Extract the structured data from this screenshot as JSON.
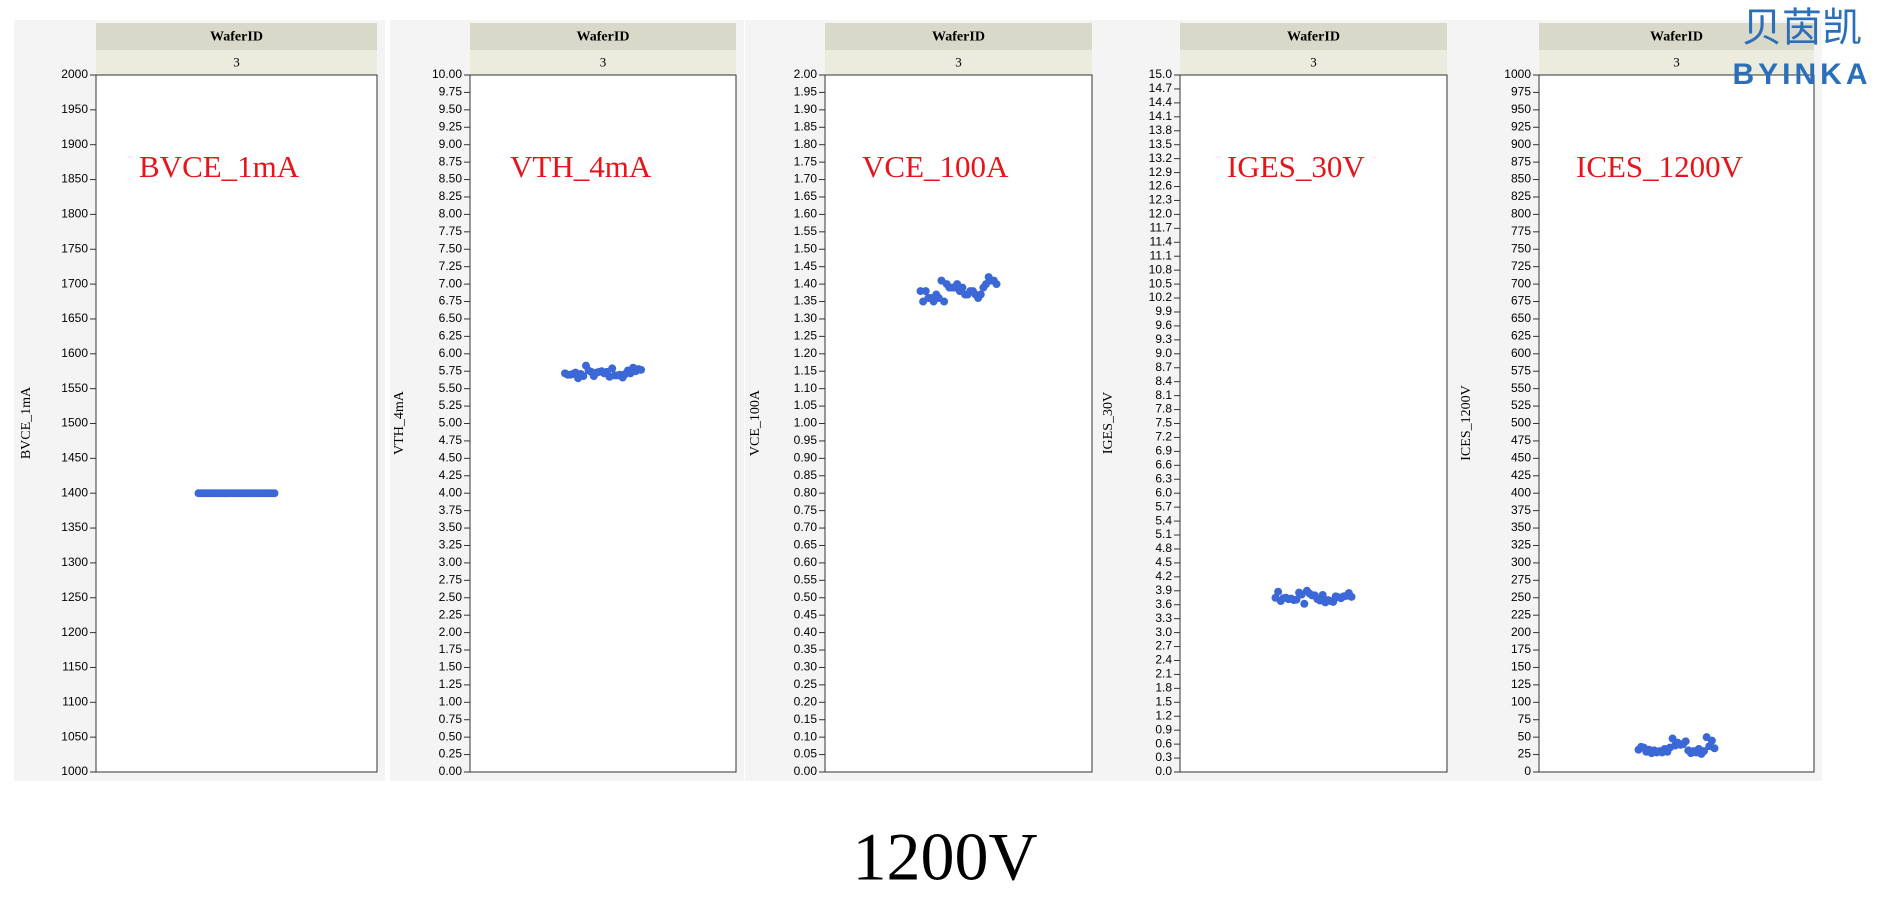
{
  "chart_data": [
    {
      "type": "scatter",
      "header": "WaferID",
      "categories": [
        "3"
      ],
      "y_label": "BVCE_1mA",
      "annotation": "BVCE_1mA",
      "color": "#3b68d6",
      "ylim": [
        1000,
        2000
      ],
      "yticks": [
        1000,
        1050,
        1100,
        1150,
        1200,
        1250,
        1300,
        1350,
        1400,
        1450,
        1500,
        1550,
        1600,
        1650,
        1700,
        1750,
        1800,
        1850,
        1900,
        1950,
        2000
      ],
      "values": [
        1400,
        1400,
        1400,
        1400,
        1400,
        1400,
        1400,
        1400,
        1400,
        1400,
        1400,
        1400,
        1400,
        1400,
        1400,
        1400,
        1400,
        1400,
        1400,
        1400,
        1400,
        1400,
        1400,
        1400,
        1400,
        1400,
        1400,
        1400,
        1400,
        1400
      ]
    },
    {
      "type": "scatter",
      "header": "WaferID",
      "categories": [
        "3"
      ],
      "y_label": "VTH_4mA",
      "annotation": "VTH_4mA",
      "color": "#3b68d6",
      "ylim": [
        0,
        10
      ],
      "yticks": [
        {
          "value": 0,
          "label": "0.00"
        },
        0.25,
        {
          "value": 0.5,
          "label": "0.50"
        },
        0.75,
        {
          "value": 1,
          "label": "1.00"
        },
        1.25,
        {
          "value": 1.5,
          "label": "1.50"
        },
        1.75,
        {
          "value": 2,
          "label": "2.00"
        },
        2.25,
        {
          "value": 2.5,
          "label": "2.50"
        },
        2.75,
        {
          "value": 3,
          "label": "3.00"
        },
        3.25,
        {
          "value": 3.5,
          "label": "3.50"
        },
        3.75,
        {
          "value": 4,
          "label": "4.00"
        },
        4.25,
        {
          "value": 4.5,
          "label": "4.50"
        },
        4.75,
        {
          "value": 5,
          "label": "5.00"
        },
        5.25,
        {
          "value": 5.5,
          "label": "5.50"
        },
        5.75,
        {
          "value": 6,
          "label": "6.00"
        },
        6.25,
        {
          "value": 6.5,
          "label": "6.50"
        },
        6.75,
        {
          "value": 7,
          "label": "7.00"
        },
        7.25,
        {
          "value": 7.5,
          "label": "7.50"
        },
        7.75,
        {
          "value": 8,
          "label": "8.00"
        },
        8.25,
        {
          "value": 8.5,
          "label": "8.50"
        },
        8.75,
        {
          "value": 9,
          "label": "9.00"
        },
        9.25,
        {
          "value": 9.5,
          "label": "9.50"
        },
        9.75,
        {
          "value": 10,
          "label": "10.00"
        }
      ],
      "values": [
        5.72,
        5.68,
        5.75,
        5.7,
        5.78,
        5.65,
        5.73,
        5.69,
        5.8,
        5.71,
        5.74,
        5.67,
        5.76,
        5.7,
        5.83,
        5.72,
        5.66,
        5.77,
        5.71,
        5.74,
        5.69,
        5.75,
        5.73,
        5.68,
        5.79,
        5.72,
        5.7,
        5.76,
        5.74,
        5.71
      ]
    },
    {
      "type": "scatter",
      "header": "WaferID",
      "categories": [
        "3"
      ],
      "y_label": "VCE_100A",
      "annotation": "VCE_100A",
      "color": "#3b68d6",
      "ylim": [
        0,
        2
      ],
      "yticks": [
        {
          "value": 0,
          "label": "0.00"
        },
        0.05,
        {
          "value": 0.1,
          "label": "0.10"
        },
        0.15,
        {
          "value": 0.2,
          "label": "0.20"
        },
        0.25,
        {
          "value": 0.3,
          "label": "0.30"
        },
        0.35,
        {
          "value": 0.4,
          "label": "0.40"
        },
        0.45,
        {
          "value": 0.5,
          "label": "0.50"
        },
        0.55,
        {
          "value": 0.6,
          "label": "0.60"
        },
        0.65,
        {
          "value": 0.7,
          "label": "0.70"
        },
        0.75,
        {
          "value": 0.8,
          "label": "0.80"
        },
        0.85,
        {
          "value": 0.9,
          "label": "0.90"
        },
        0.95,
        {
          "value": 1,
          "label": "1.00"
        },
        1.05,
        {
          "value": 1.1,
          "label": "1.10"
        },
        1.15,
        {
          "value": 1.2,
          "label": "1.20"
        },
        1.25,
        {
          "value": 1.3,
          "label": "1.30"
        },
        1.35,
        {
          "value": 1.4,
          "label": "1.40"
        },
        1.45,
        {
          "value": 1.5,
          "label": "1.50"
        },
        1.55,
        {
          "value": 1.6,
          "label": "1.60"
        },
        1.65,
        {
          "value": 1.7,
          "label": "1.70"
        },
        1.75,
        {
          "value": 1.8,
          "label": "1.80"
        },
        1.85,
        {
          "value": 1.9,
          "label": "1.90"
        },
        1.95,
        {
          "value": 2,
          "label": "2.00"
        }
      ],
      "values": [
        1.38,
        1.36,
        1.4,
        1.37,
        1.41,
        1.35,
        1.39,
        1.38,
        1.42,
        1.36,
        1.4,
        1.37,
        1.39,
        1.35,
        1.41,
        1.38,
        1.36,
        1.4,
        1.37,
        1.39,
        1.38,
        1.41,
        1.36,
        1.39,
        1.37,
        1.4,
        1.38,
        1.35,
        1.39,
        1.37
      ]
    },
    {
      "type": "scatter",
      "header": "WaferID",
      "categories": [
        "3"
      ],
      "y_label": "IGES_30V",
      "annotation": "IGES_30V",
      "color": "#3b68d6",
      "ylim": [
        0,
        15
      ],
      "yticks": [
        {
          "value": 0,
          "label": "0.0"
        },
        0.3,
        0.6,
        0.9,
        1.2,
        1.5,
        1.8,
        2.1,
        2.4,
        2.7,
        {
          "value": 3,
          "label": "3.0"
        },
        3.3,
        3.6,
        3.9,
        4.2,
        4.5,
        4.8,
        5.1,
        5.4,
        5.7,
        {
          "value": 6,
          "label": "6.0"
        },
        6.3,
        6.6,
        6.9,
        7.2,
        7.5,
        7.8,
        8.1,
        8.4,
        8.7,
        {
          "value": 9,
          "label": "9.0"
        },
        9.3,
        9.6,
        9.9,
        10.2,
        10.5,
        10.8,
        11.1,
        11.4,
        11.7,
        {
          "value": 12,
          "label": "12.0"
        },
        12.3,
        12.6,
        12.9,
        13.2,
        13.5,
        13.8,
        14.1,
        14.4,
        14.7,
        {
          "value": 15,
          "label": "15.0"
        }
      ],
      "values": [
        3.75,
        3.7,
        3.8,
        3.68,
        3.85,
        3.72,
        3.9,
        3.65,
        3.78,
        3.74,
        3.82,
        3.69,
        3.76,
        3.88,
        3.71,
        3.8,
        3.66,
        3.77,
        3.73,
        3.84,
        3.7,
        3.79,
        3.75,
        3.62,
        3.81,
        3.74,
        3.68,
        3.86,
        3.72,
        3.78
      ]
    },
    {
      "type": "scatter",
      "header": "WaferID",
      "categories": [
        "3"
      ],
      "y_label": "ICES_1200V",
      "annotation": "ICES_1200V",
      "color": "#3b68d6",
      "ylim": [
        0,
        1000
      ],
      "yticks": [
        0,
        25,
        50,
        75,
        100,
        125,
        150,
        175,
        200,
        225,
        250,
        275,
        300,
        325,
        350,
        375,
        400,
        425,
        450,
        475,
        500,
        525,
        550,
        575,
        600,
        625,
        650,
        675,
        700,
        725,
        750,
        775,
        800,
        825,
        850,
        875,
        900,
        925,
        950,
        975,
        1000
      ],
      "values": [
        32,
        28,
        38,
        30,
        45,
        27,
        35,
        31,
        50,
        29,
        33,
        40,
        26,
        36,
        30,
        42,
        28,
        34,
        31,
        48,
        27,
        37,
        32,
        29,
        44,
        30,
        35,
        28,
        39,
        33
      ]
    }
  ],
  "footer": "1200V",
  "logo": {
    "cn": "贝茵凯",
    "en": "BYINKA"
  }
}
